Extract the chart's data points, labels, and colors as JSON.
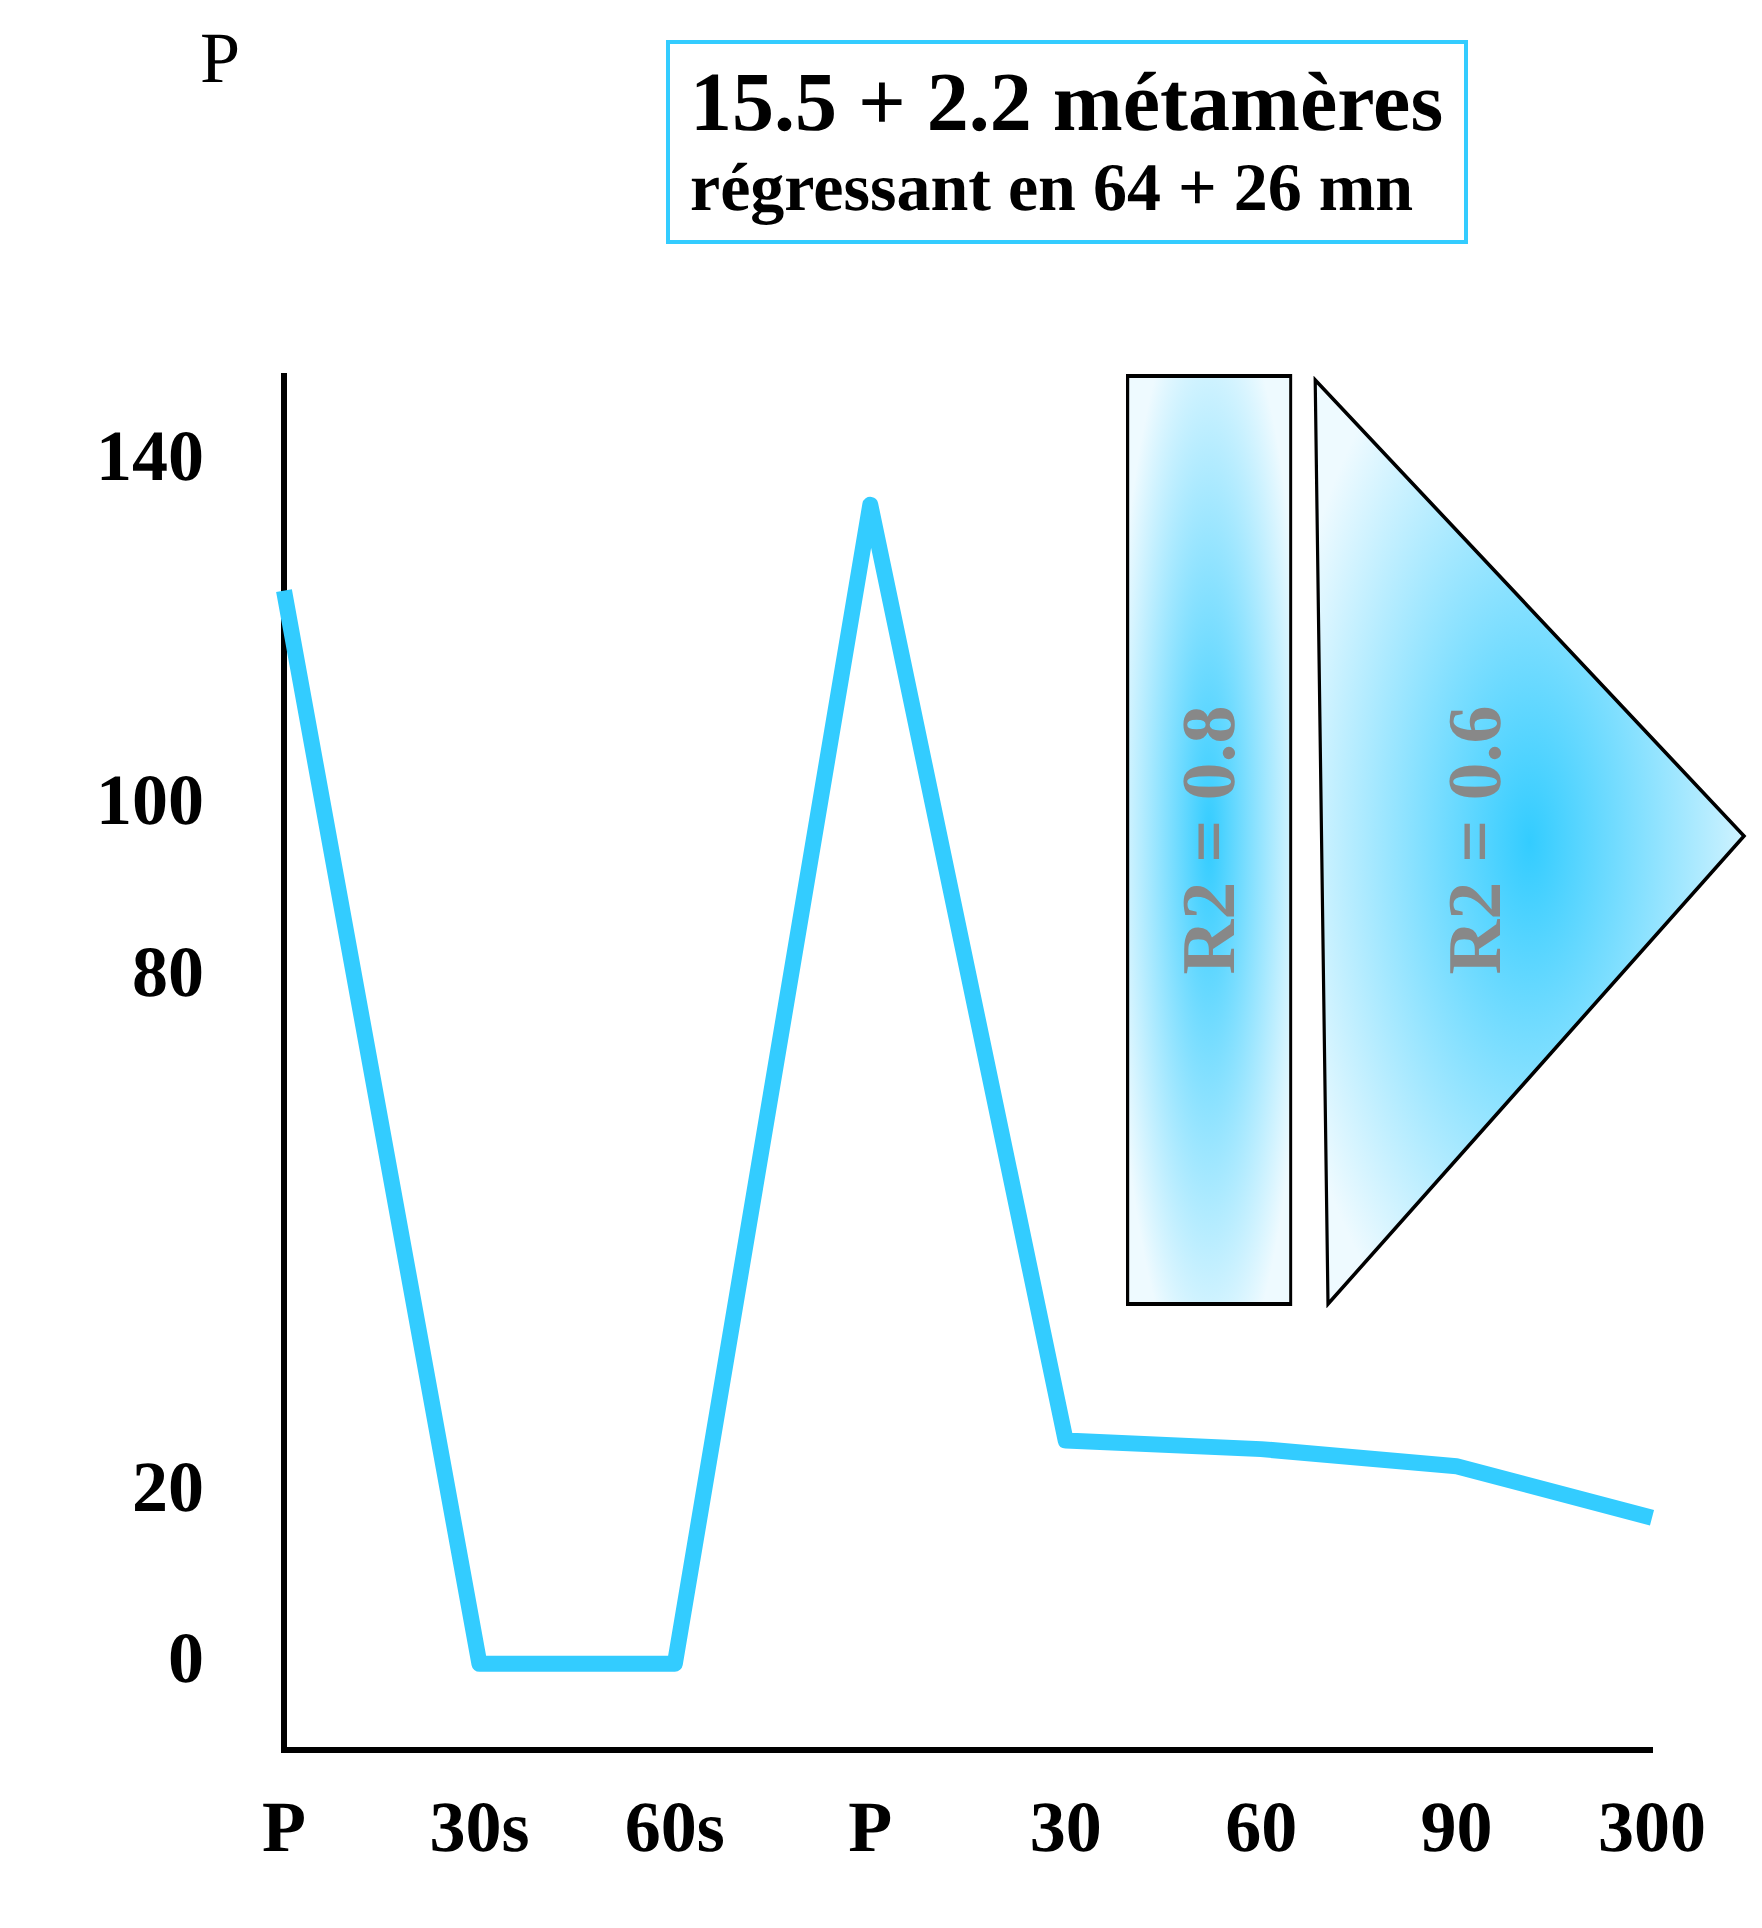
{
  "chart_data": {
    "type": "line",
    "title": "15.5 + 2.2 métamères",
    "subtitle": "régressant en  64 + 26 mn",
    "ylabel": "P",
    "categories": [
      "P",
      "30s",
      "60s",
      "P",
      "30",
      "60",
      "90",
      "300"
    ],
    "series": [
      {
        "color": "#33ccff",
        "values": [
          125,
          0,
          0,
          135,
          26,
          25,
          23,
          17
        ]
      }
    ],
    "ylim": [
      -10,
      150
    ],
    "yticks": [
      0,
      20,
      80,
      100,
      140
    ],
    "annotations": [
      "R2 = 0.8",
      "R2 = 0.6"
    ],
    "grid": false,
    "legend": false,
    "marker": "none",
    "line_style": "solid"
  }
}
